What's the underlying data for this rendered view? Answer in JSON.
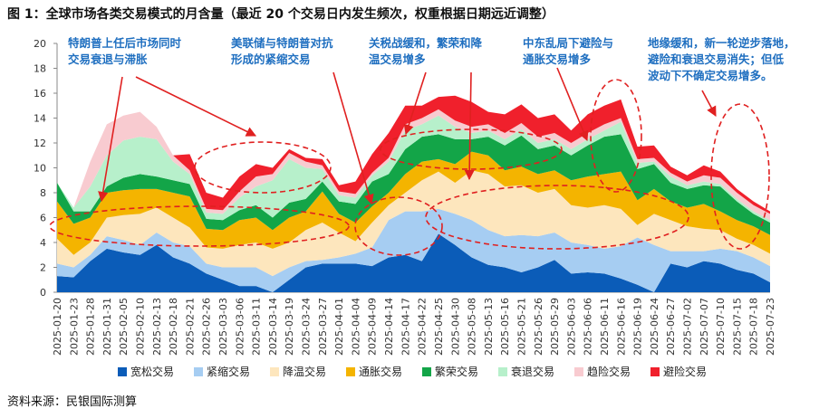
{
  "title": "图 1：全球市场各类交易模式的月含量（最近 20 个交易日内发生频次，权重根据日期远近调整）",
  "source": "资料来源：民银国际测算",
  "chart_data": {
    "type": "stacked-area",
    "categories": [
      "2025-01-20",
      "2025-01-23",
      "2025-01-28",
      "2025-01-31",
      "2025-02-05",
      "2025-02-10",
      "2025-02-13",
      "2025-02-18",
      "2025-02-21",
      "2025-02-26",
      "2025-03-03",
      "2025-03-06",
      "2025-03-11",
      "2025-03-14",
      "2025-03-19",
      "2025-03-24",
      "2025-03-27",
      "2025-04-01",
      "2025-04-04",
      "2025-04-09",
      "2025-04-14",
      "2025-04-17",
      "2025-04-22",
      "2025-04-25",
      "2025-04-30",
      "2025-05-08",
      "2025-05-13",
      "2025-05-16",
      "2025-05-21",
      "2025-05-26",
      "2025-05-29",
      "2025-06-03",
      "2025-06-06",
      "2025-06-11",
      "2025-06-16",
      "2025-06-19",
      "2025-06-24",
      "2025-06-27",
      "2025-07-02",
      "2025-07-07",
      "2025-07-10",
      "2025-07-15",
      "2025-07-18",
      "2025-07-23"
    ],
    "ylim": [
      0,
      20
    ],
    "yticks": [
      0,
      2,
      4,
      6,
      8,
      10,
      12,
      14,
      16,
      18,
      20
    ],
    "series": [
      {
        "name": "宽松交易",
        "color": "#0b5cb8",
        "values": [
          1.3,
          1.2,
          2.5,
          3.5,
          3.2,
          3,
          3.8,
          2.8,
          2.3,
          1.5,
          1,
          0.5,
          0.5,
          0,
          1,
          2,
          2.3,
          2.3,
          2.3,
          2.1,
          2.8,
          3,
          2.5,
          4.7,
          3.8,
          2.8,
          2.2,
          2,
          1.6,
          2,
          2.6,
          1.5,
          1.6,
          1.5,
          1.1,
          0.6,
          0,
          2.3,
          2,
          2.5,
          2.3,
          1.8,
          1.5,
          0.8
        ]
      },
      {
        "name": "紧缩交易",
        "color": "#a6cdf2",
        "values": [
          1,
          0.8,
          0.5,
          1,
          1,
          0.8,
          1,
          1.2,
          1.4,
          0.8,
          1,
          1.5,
          1.5,
          1.3,
          1,
          0.5,
          0.3,
          0.5,
          0.8,
          1.5,
          3,
          3.5,
          4,
          2,
          2.5,
          3,
          2.8,
          2.5,
          3,
          2.5,
          2.2,
          2.5,
          2.2,
          2,
          2.6,
          3.8,
          3.8,
          1,
          1.3,
          0.8,
          1.2,
          1.5,
          1.3,
          1.3
        ]
      },
      {
        "name": "降温交易",
        "color": "#fde6bd",
        "values": [
          2,
          1,
          1,
          1.5,
          2,
          2.5,
          2,
          2,
          1.5,
          1.3,
          1.5,
          1.8,
          2,
          2.2,
          2,
          2.5,
          3,
          2,
          1,
          2,
          1.2,
          1.5,
          2.5,
          3,
          2.5,
          4,
          4.5,
          4,
          4,
          3.5,
          3.5,
          3,
          3,
          3.5,
          3,
          1,
          2.5,
          2.5,
          2,
          1.8,
          1.5,
          1,
          1,
          1
        ]
      },
      {
        "name": "通胀交易",
        "color": "#f4b400",
        "values": [
          3,
          2.5,
          2,
          2,
          2,
          2,
          1.5,
          2,
          2.5,
          1.5,
          1.5,
          2,
          2,
          1.5,
          2,
          1.5,
          2.5,
          1.5,
          1.5,
          1.3,
          1,
          1.5,
          1.5,
          1,
          1.5,
          1.5,
          1.5,
          1.3,
          1.5,
          1.5,
          1.5,
          2,
          2.5,
          2.5,
          3,
          2,
          2,
          1.5,
          1.5,
          2,
          1.5,
          1.5,
          1.5,
          1.5
        ]
      },
      {
        "name": "繁荣交易",
        "color": "#13a548",
        "values": [
          1.5,
          1,
          0.5,
          0.5,
          1,
          1.2,
          1,
          1,
          1,
          0.8,
          0.8,
          0.8,
          1,
          1,
          1.2,
          1,
          0.8,
          1,
          1.5,
          2,
          1.5,
          2,
          2,
          2,
          2,
          1,
          1.5,
          2,
          2.5,
          2,
          2,
          2,
          2.5,
          3,
          3,
          2.5,
          2,
          1.5,
          1.5,
          1.5,
          2,
          1.5,
          1,
          1
        ]
      },
      {
        "name": "衰退交易",
        "color": "#b7f0cb",
        "values": [
          0,
          0.3,
          2,
          2.5,
          3,
          3,
          3,
          1.5,
          0.8,
          0.5,
          0.5,
          1,
          1.5,
          3,
          3.5,
          2.5,
          1,
          0.5,
          0.5,
          0.5,
          1,
          1.5,
          1,
          1.5,
          1,
          0.5,
          0.5,
          0.5,
          0.5,
          0.5,
          0.5,
          0.5,
          0.5,
          0.5,
          1,
          0.5,
          0.2,
          0.5,
          0.3,
          0.3,
          0.2,
          0.2,
          0.2,
          0.2
        ]
      },
      {
        "name": "趋险交易",
        "color": "#f8cbd0",
        "values": [
          0,
          0,
          2,
          2.5,
          2,
          2,
          1,
          0.5,
          0.3,
          0.3,
          0.3,
          0.5,
          0.8,
          0.5,
          0.5,
          0.5,
          0.3,
          0.3,
          0.3,
          0.2,
          0.3,
          0.5,
          0.5,
          0.5,
          0.5,
          0.5,
          0.5,
          0.5,
          0.5,
          0.5,
          0.5,
          0.5,
          0.5,
          0.5,
          0.3,
          0.3,
          0.3,
          0.3,
          0.3,
          0.5,
          0.5,
          0.5,
          0.5,
          0.5
        ]
      },
      {
        "name": "避险交易",
        "color": "#f0202c",
        "values": [
          0,
          0,
          0,
          0,
          0,
          0,
          0,
          0,
          1.3,
          1.3,
          1,
          1.2,
          1,
          0.5,
          0.3,
          0.3,
          0.5,
          0.5,
          1,
          1.5,
          2,
          1.5,
          1,
          1,
          2,
          2,
          1,
          1.5,
          1.5,
          1.5,
          1.5,
          1,
          1.5,
          1.5,
          1.5,
          1,
          1,
          0.5,
          0.5,
          0.8,
          0.5,
          0.3,
          0.3,
          0.2
        ]
      }
    ],
    "annotations": [
      [
        "特朗普上任后市场同时",
        "交易衰退与滞胀"
      ],
      [
        "美联储与特朗普对抗",
        "形成的紧缩交易"
      ],
      [
        "关税战缓和，繁荣和降",
        "温交易增多"
      ],
      [
        "中东乱局下避险与",
        "通胀交易增多"
      ],
      [
        "地缘缓和，新一轮逆步落地，",
        "避险和衰退交易消失；但低",
        "波动下不确定交易增多。"
      ]
    ]
  }
}
